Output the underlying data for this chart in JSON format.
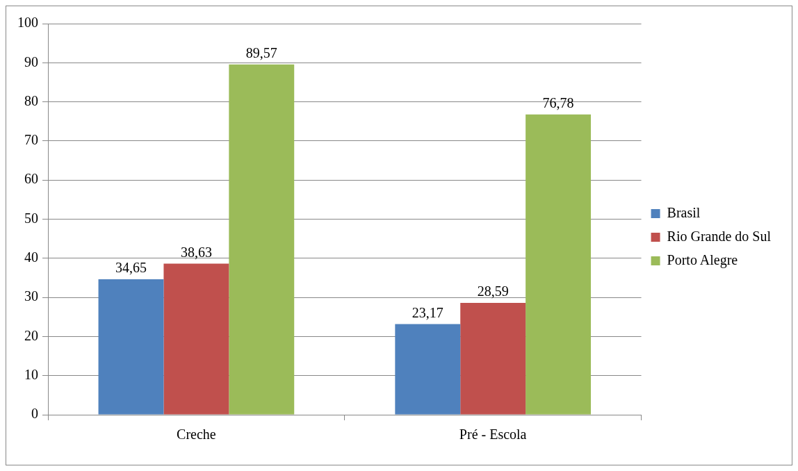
{
  "chart_data": {
    "type": "bar",
    "categories": [
      "Creche",
      "Pré - Escola"
    ],
    "series": [
      {
        "name": "Brasil",
        "color": "#4f81bd",
        "values": [
          34.65,
          23.17
        ],
        "value_labels": [
          "34,65",
          "23,17"
        ]
      },
      {
        "name": "Rio Grande do Sul",
        "color": "#c0504d",
        "values": [
          38.63,
          28.59
        ],
        "value_labels": [
          "38,63",
          "28,59"
        ]
      },
      {
        "name": "Porto Alegre",
        "color": "#9bbb59",
        "values": [
          89.57,
          76.78
        ],
        "value_labels": [
          "89,57",
          "76,78"
        ]
      }
    ],
    "ylim": [
      0,
      100
    ],
    "yticks": [
      0,
      10,
      20,
      30,
      40,
      50,
      60,
      70,
      80,
      90,
      100
    ],
    "grid": "y",
    "legend": "right"
  }
}
